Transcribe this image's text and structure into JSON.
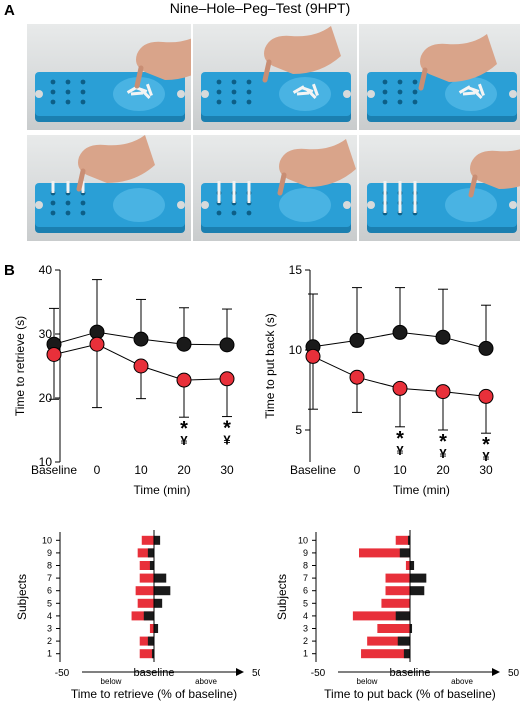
{
  "figure": {
    "panel_a": "A",
    "panel_b": "B",
    "title": "Nine–Hole–Peg–Test (9HPT)"
  },
  "colors": {
    "red": "#e8303a",
    "black": "#1a1a1a",
    "board": "#2a9fd6"
  },
  "photos": {
    "count": 6,
    "subject": "nine-hole peg board with hand"
  },
  "chart_data": [
    {
      "type": "line",
      "ylabel": "Time to retrieve (s)",
      "xlabel": "Time (min)",
      "categories": [
        "Baseline",
        "0",
        "10",
        "20",
        "30"
      ],
      "ylim": [
        10,
        40
      ],
      "yticks": [
        "10",
        "20",
        "30",
        "40"
      ],
      "series": [
        {
          "color": "#1a1a1a",
          "values": [
            28.4,
            30.3,
            29.2,
            28.4,
            28.3
          ],
          "error": [
            5.6,
            8.2,
            6.2,
            5.7,
            5.6
          ]
        },
        {
          "color": "#e8303a",
          "values": [
            26.8,
            28.4,
            25.0,
            22.8,
            23.0
          ],
          "error": [
            7.0,
            9.9,
            5.1,
            5.8,
            5.9
          ]
        }
      ],
      "annotations": [
        {
          "category": "20",
          "text": "*"
        },
        {
          "category": "20",
          "text": "¥"
        },
        {
          "category": "30",
          "text": "*"
        },
        {
          "category": "30",
          "text": "¥"
        }
      ]
    },
    {
      "type": "line",
      "ylabel": "Time to put back (s)",
      "xlabel": "Time (min)",
      "categories": [
        "Baseline",
        "0",
        "10",
        "20",
        "30"
      ],
      "ylim": [
        3,
        15
      ],
      "yticks": [
        "5",
        "10",
        "15"
      ],
      "series": [
        {
          "color": "#1a1a1a",
          "values": [
            10.2,
            10.6,
            11.1,
            10.8,
            10.1
          ],
          "error": [
            3.3,
            3.3,
            2.8,
            3.0,
            2.7
          ]
        },
        {
          "color": "#e8303a",
          "values": [
            9.6,
            8.3,
            7.6,
            7.4,
            7.1
          ],
          "error": [
            3.3,
            2.2,
            2.4,
            2.4,
            2.3
          ]
        }
      ],
      "annotations": [
        {
          "category": "10",
          "text": "*"
        },
        {
          "category": "10",
          "text": "¥"
        },
        {
          "category": "20",
          "text": "*"
        },
        {
          "category": "20",
          "text": "¥"
        },
        {
          "category": "30",
          "text": "*"
        },
        {
          "category": "30",
          "text": "¥"
        }
      ]
    },
    {
      "type": "bar",
      "orientation": "horizontal",
      "ylabel": "Subjects",
      "xlabel": "Time to retrieve (% of baseline)",
      "xlim": [
        -50,
        50
      ],
      "xticks": [
        "-50",
        "50"
      ],
      "baseline_label": "baseline",
      "below_label": "below",
      "above_label": "above",
      "categories": [
        "10",
        "9",
        "8",
        "7",
        "6",
        "5",
        "4",
        "3",
        "2",
        "1"
      ],
      "series": [
        {
          "color": "#e8303a",
          "values": [
            -6,
            -8,
            -7,
            -7,
            -9,
            -8,
            -11,
            -2,
            -7,
            -7
          ]
        },
        {
          "color": "#1a1a1a",
          "values": [
            3,
            -3,
            -2,
            6,
            8,
            4,
            -5,
            2,
            -3,
            -1
          ]
        }
      ]
    },
    {
      "type": "bar",
      "orientation": "horizontal",
      "ylabel": "Subjects",
      "xlabel": "Time to put back (% of baseline)",
      "xlim": [
        -50,
        50
      ],
      "xticks": [
        "-50",
        "50"
      ],
      "baseline_label": "baseline",
      "below_label": "below",
      "above_label": "above",
      "categories": [
        "10",
        "9",
        "8",
        "7",
        "6",
        "5",
        "4",
        "3",
        "2",
        "1"
      ],
      "series": [
        {
          "color": "#e8303a",
          "values": [
            -7,
            -25,
            -2,
            -12,
            -12,
            -14,
            -28,
            -16,
            -21,
            -24
          ]
        },
        {
          "color": "#1a1a1a",
          "values": [
            -1,
            -5,
            2,
            8,
            7,
            0,
            -7,
            1,
            -6,
            -3
          ]
        }
      ]
    }
  ]
}
